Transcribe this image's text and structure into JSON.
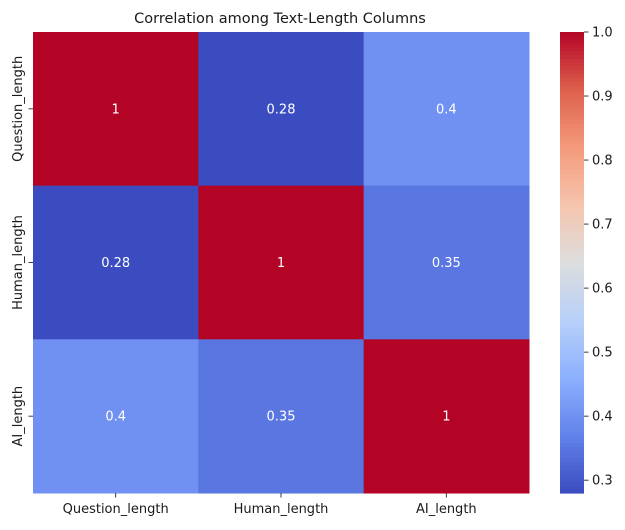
{
  "chart_data": {
    "type": "heatmap",
    "title": "Correlation among Text-Length Columns",
    "x_categories": [
      "Question_length",
      "Human_length",
      "AI_length"
    ],
    "y_categories": [
      "Question_length",
      "Human_length",
      "AI_length"
    ],
    "values": [
      [
        1.0,
        0.28,
        0.4
      ],
      [
        0.28,
        1.0,
        0.35
      ],
      [
        0.4,
        0.35,
        1.0
      ]
    ],
    "annotations": [
      [
        "1",
        "0.28",
        "0.4"
      ],
      [
        "0.28",
        "1",
        "0.35"
      ],
      [
        "0.4",
        "0.35",
        "1"
      ]
    ],
    "colormap": "coolwarm",
    "colorbar": {
      "range": [
        0.28,
        1.0
      ],
      "ticks": [
        0.3,
        0.4,
        0.5,
        0.6,
        0.7,
        0.8,
        0.9,
        1.0
      ],
      "tick_labels": [
        "0.3",
        "0.4",
        "0.5",
        "0.6",
        "0.7",
        "0.8",
        "0.9",
        "1.0"
      ]
    }
  }
}
